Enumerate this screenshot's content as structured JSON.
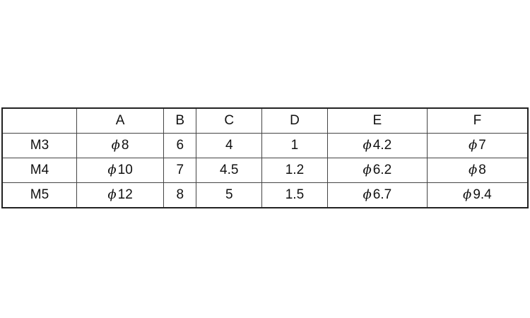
{
  "table": {
    "corner": "",
    "columns": [
      "A",
      "B",
      "C",
      "D",
      "E",
      "F"
    ],
    "rows": [
      {
        "label": "M3",
        "cells": [
          {
            "phi": true,
            "v": "8"
          },
          {
            "phi": false,
            "v": "6"
          },
          {
            "phi": false,
            "v": "4"
          },
          {
            "phi": false,
            "v": "1"
          },
          {
            "phi": true,
            "v": "4.2"
          },
          {
            "phi": true,
            "v": "7"
          }
        ]
      },
      {
        "label": "M4",
        "cells": [
          {
            "phi": true,
            "v": "10"
          },
          {
            "phi": false,
            "v": "7"
          },
          {
            "phi": false,
            "v": "4.5"
          },
          {
            "phi": false,
            "v": "1.2"
          },
          {
            "phi": true,
            "v": "6.2"
          },
          {
            "phi": true,
            "v": "8"
          }
        ]
      },
      {
        "label": "M5",
        "cells": [
          {
            "phi": true,
            "v": "12"
          },
          {
            "phi": false,
            "v": "8"
          },
          {
            "phi": false,
            "v": "5"
          },
          {
            "phi": false,
            "v": "1.5"
          },
          {
            "phi": true,
            "v": "6.7"
          },
          {
            "phi": true,
            "v": "9.4"
          }
        ]
      }
    ],
    "phi_symbol": "ϕ"
  }
}
